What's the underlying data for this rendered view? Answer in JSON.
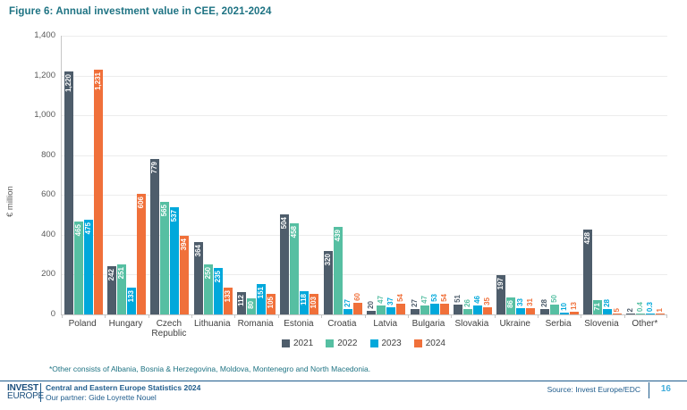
{
  "title": "Figure 6: Annual investment value in CEE, 2021-2024",
  "chart_data": {
    "type": "bar",
    "title": "Figure 6: Annual investment value in CEE, 2021-2024",
    "xlabel": "",
    "ylabel": "€ million",
    "ylim": [
      0,
      1400
    ],
    "ytick_step": 200,
    "yticks": [
      "0",
      "200",
      "400",
      "600",
      "800",
      "1,000",
      "1,200",
      "1,400"
    ],
    "grid": true,
    "legend_position": "bottom",
    "categories": [
      "Poland",
      "Hungary",
      "Czech Republic",
      "Lithuania",
      "Romania",
      "Estonia",
      "Croatia",
      "Latvia",
      "Bulgaria",
      "Slovakia",
      "Ukraine",
      "Serbia",
      "Slovenia",
      "Other*"
    ],
    "series": [
      {
        "name": "2021",
        "color": "#4E5D6B",
        "values": [
          1220,
          242,
          779,
          364,
          112,
          504,
          320,
          20,
          27,
          51,
          197,
          28,
          428,
          2
        ]
      },
      {
        "name": "2022",
        "color": "#56BFA2",
        "values": [
          465,
          251,
          565,
          250,
          80,
          458,
          439,
          47,
          47,
          26,
          86,
          50,
          71,
          0.4
        ]
      },
      {
        "name": "2023",
        "color": "#00A8DB",
        "values": [
          475,
          133,
          537,
          235,
          151,
          118,
          27,
          37,
          53,
          46,
          33,
          10,
          28,
          0.3
        ]
      },
      {
        "name": "2024",
        "color": "#F0703A",
        "values": [
          1231,
          606,
          394,
          133,
          105,
          103,
          60,
          54,
          54,
          35,
          31,
          13,
          5,
          1
        ]
      }
    ]
  },
  "footnote": "*Other consists of Albania, Bosnia & Herzegovina, Moldova, Montenegro and North Macedonia.",
  "footer": {
    "logo_line1": "INVEST",
    "logo_line2": "EUROPE",
    "doc_title": "Central and Eastern Europe Statistics 2024",
    "partner": "Our partner: Gide Loyrette Nouel",
    "source": "Source: Invest Europe/EDC",
    "page_number": "16"
  },
  "colors": {
    "title_teal": "#1E7383",
    "footer_blue": "#1F5C8C",
    "page_number_cyan": "#41ADDC",
    "axis_text": "#595959",
    "gridline": "#ECECEC"
  }
}
